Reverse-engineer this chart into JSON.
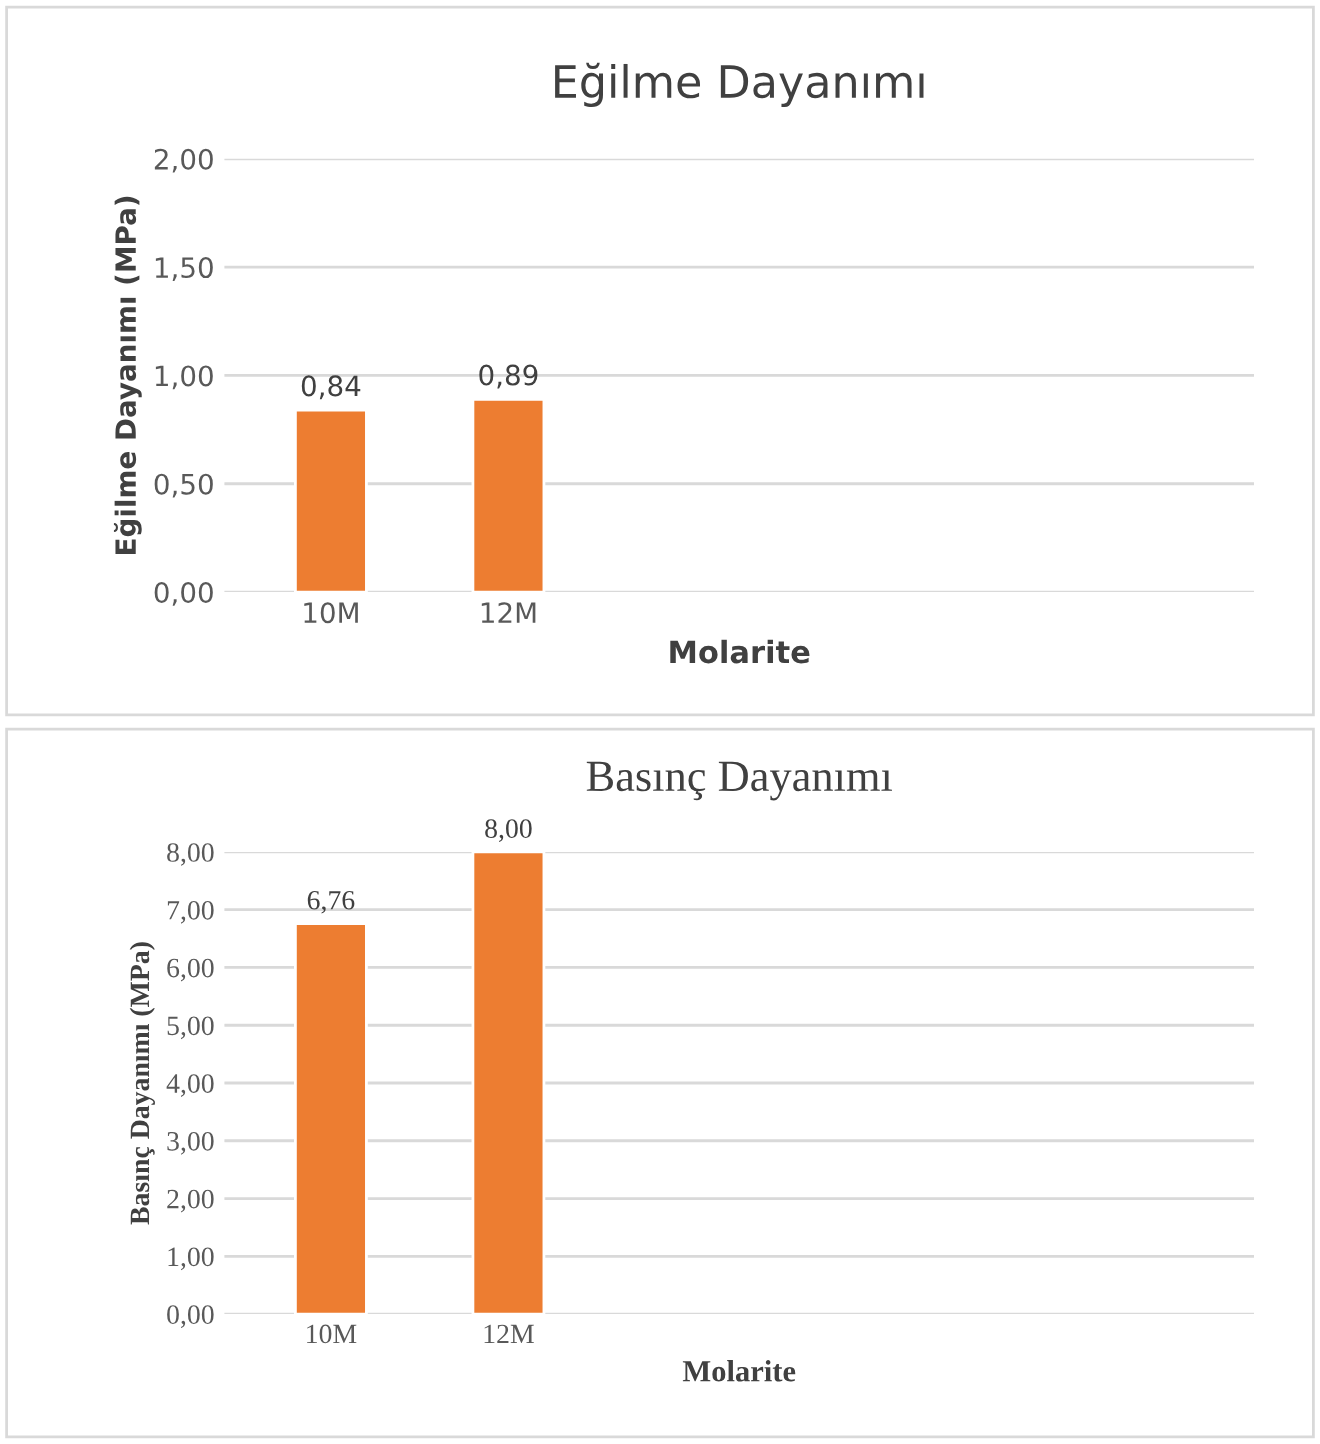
{
  "chart_data": [
    {
      "type": "bar",
      "title": "Eğilme Dayanımı",
      "xlabel": "Molarite",
      "ylabel": "Eğilme Dayanımı (MPa)",
      "categories": [
        "10M",
        "12M"
      ],
      "values": [
        0.84,
        0.89
      ],
      "color": "#ed7d31",
      "value_labels": [
        "0,84",
        "0,89"
      ],
      "ylim": [
        0,
        2
      ],
      "yticks": [
        {
          "value": 0,
          "label": "0,00"
        },
        {
          "value": 0.5,
          "label": "0,50"
        },
        {
          "value": 1,
          "label": "1,00"
        },
        {
          "value": 1.5,
          "label": "1,50"
        },
        {
          "value": 2,
          "label": "2,00"
        }
      ],
      "grid": "y",
      "legend": false
    },
    {
      "type": "bar",
      "title": "Basınç Dayanımı",
      "xlabel": "Molarite",
      "ylabel": "Basınç Dayanımı (MPa)",
      "categories": [
        "10M",
        "12M"
      ],
      "values": [
        6.76,
        8.0
      ],
      "color": "#ed7d31",
      "value_labels": [
        "6,76",
        "8,00"
      ],
      "ylim": [
        0,
        8
      ],
      "yticks": [
        {
          "value": 0,
          "label": "0,00"
        },
        {
          "value": 1,
          "label": "1,00"
        },
        {
          "value": 2,
          "label": "2,00"
        },
        {
          "value": 3,
          "label": "3,00"
        },
        {
          "value": 4,
          "label": "4,00"
        },
        {
          "value": 5,
          "label": "5,00"
        },
        {
          "value": 6,
          "label": "6,00"
        },
        {
          "value": 7,
          "label": "7,00"
        },
        {
          "value": 8,
          "label": "8,00"
        }
      ],
      "grid": "y",
      "legend": false
    }
  ]
}
